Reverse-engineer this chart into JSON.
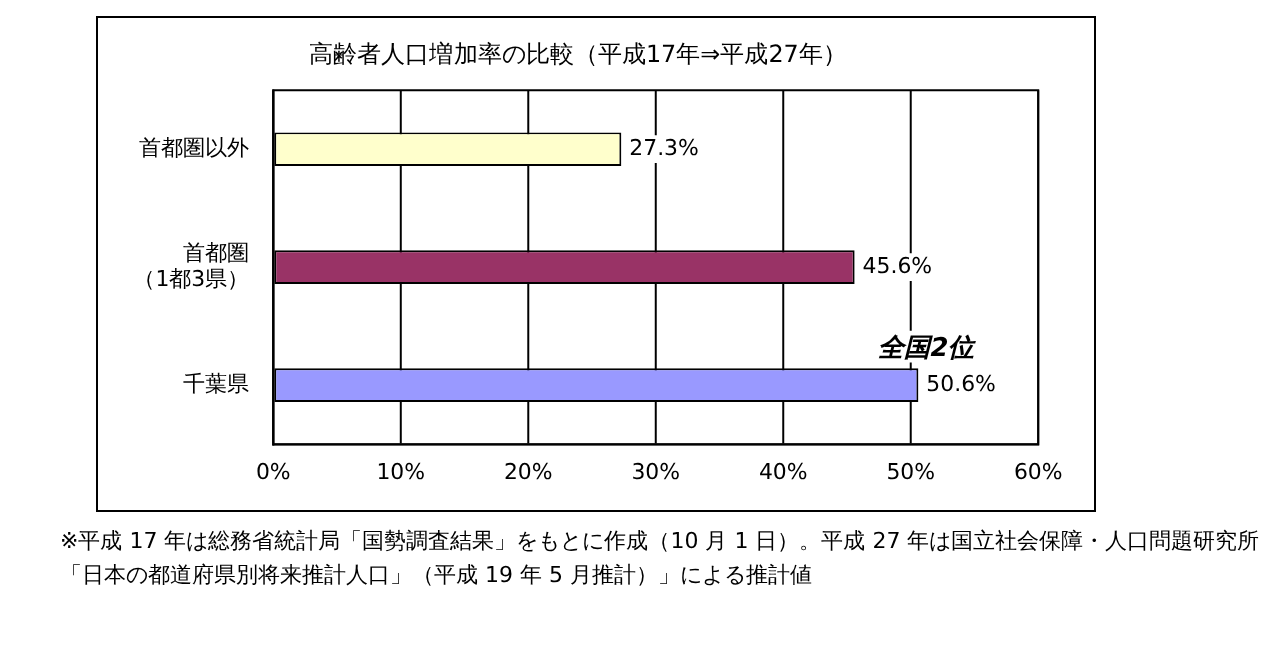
{
  "chart_data": {
    "type": "bar",
    "orientation": "horizontal",
    "title": "高齢者人口増加率の比較（平成17年⇒平成27年）",
    "categories": [
      "首都圏以外",
      "首都圏（1都3県）",
      "千葉県"
    ],
    "values": [
      27.3,
      45.6,
      50.6
    ],
    "colors": [
      "#ffffcc",
      "#993366",
      "#9999ff"
    ],
    "value_labels": [
      "27.3%",
      "45.6%",
      "50.6%"
    ],
    "xlim": [
      0,
      60
    ],
    "xticks": [
      {
        "value": 0,
        "label": "0%"
      },
      {
        "value": 10,
        "label": "10%"
      },
      {
        "value": 20,
        "label": "20%"
      },
      {
        "value": 30,
        "label": "30%"
      },
      {
        "value": 40,
        "label": "40%"
      },
      {
        "value": 50,
        "label": "50%"
      },
      {
        "value": 60,
        "label": "60%"
      }
    ],
    "grid": "x",
    "legend": false,
    "annotations": [
      {
        "text": "全国2位",
        "x": 50.6,
        "y": "千葉県"
      },
      "※平成 17 年は総務省統計局「国勢調査結果」をもとに作成（10 月 1 日）。平成 27 年は国立社会保障・人口問題研究所「日本の都道府県別将来推計人口」（平成 19 年 5 月推計）」による推計値"
    ]
  }
}
